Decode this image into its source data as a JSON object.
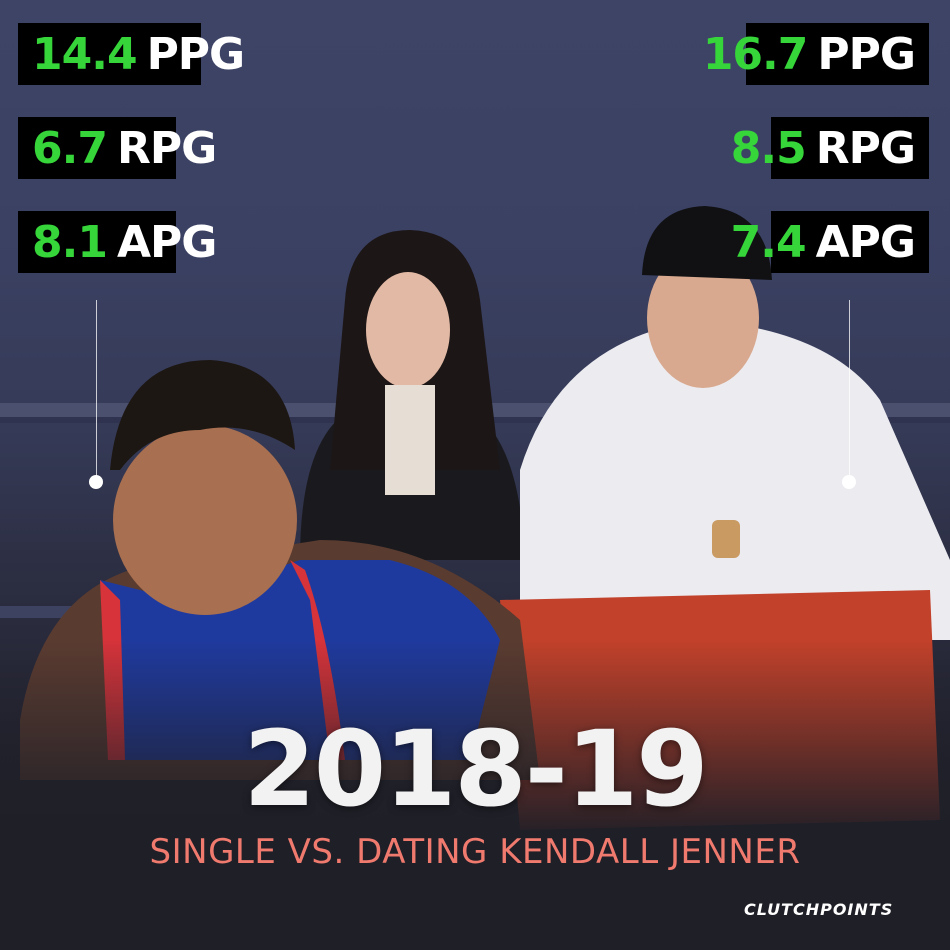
{
  "left_stats": [
    {
      "value": "14.4",
      "unit": "PPG"
    },
    {
      "value": "6.7",
      "unit": "RPG"
    },
    {
      "value": "8.1",
      "unit": "APG"
    }
  ],
  "right_stats": [
    {
      "value": "16.7",
      "unit": "PPG"
    },
    {
      "value": "8.5",
      "unit": "RPG"
    },
    {
      "value": "7.4",
      "unit": "APG"
    }
  ],
  "title": "2018-19",
  "subtitle": "SINGLE VS. DATING KENDALL JENNER",
  "brand": "CLUTCHPOINTS",
  "colors": {
    "stat_value": "#36d63a",
    "stat_unit": "#ffffff",
    "subtitle": "#f07a6e",
    "box": "#000000"
  }
}
